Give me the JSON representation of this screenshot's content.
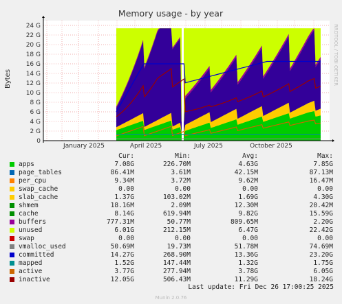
{
  "title": "Memory usage - by year",
  "side_label": "RRDTOOL / TOBI OETIKER",
  "chart_data": {
    "type": "area",
    "ylabel": "Bytes",
    "yticks": [
      "0",
      "2 G",
      "4 G",
      "6 G",
      "8 G",
      "10 G",
      "12 G",
      "14 G",
      "16 G",
      "18 G",
      "20 G",
      "22 G",
      "24 G"
    ],
    "ylim": [
      0,
      25
    ],
    "xticks": [
      "January 2025",
      "April 2025",
      "July 2025",
      "October 2025"
    ],
    "grid": true
  },
  "legend": {
    "headers": {
      "cur": "Cur:",
      "min": "Min:",
      "avg": "Avg:",
      "max": "Max:"
    },
    "rows": [
      {
        "name": "apps",
        "color": "#00cc00",
        "cur": "7.08G",
        "min": "226.70M",
        "avg": "4.63G",
        "max": "7.85G"
      },
      {
        "name": "page_tables",
        "color": "#0066b3",
        "cur": "86.41M",
        "min": "3.61M",
        "avg": "42.15M",
        "max": "87.13M"
      },
      {
        "name": "per_cpu",
        "color": "#ff8000",
        "cur": "9.34M",
        "min": "3.72M",
        "avg": "9.62M",
        "max": "16.47M"
      },
      {
        "name": "swap_cache",
        "color": "#ffcc00",
        "cur": "0.00",
        "min": "0.00",
        "avg": "0.00",
        "max": "0.00"
      },
      {
        "name": "slab_cache",
        "color": "#ffcc00",
        "cur": "1.37G",
        "min": "103.02M",
        "avg": "1.69G",
        "max": "4.30G"
      },
      {
        "name": "shmem",
        "color": "#008f00",
        "cur": "18.16M",
        "min": "2.09M",
        "avg": "12.30M",
        "max": "20.42M"
      },
      {
        "name": "cache",
        "color": "#008f00",
        "cur": "8.14G",
        "min": "619.94M",
        "avg": "9.82G",
        "max": "15.59G"
      },
      {
        "name": "buffers",
        "color": "#990099",
        "cur": "777.31M",
        "min": "50.77M",
        "avg": "809.65M",
        "max": "2.20G"
      },
      {
        "name": "unused",
        "color": "#ccff00",
        "cur": "6.01G",
        "min": "212.15M",
        "avg": "6.47G",
        "max": "22.42G"
      },
      {
        "name": "swap",
        "color": "#cc0000",
        "cur": "0.00",
        "min": "0.00",
        "avg": "0.00",
        "max": "0.00"
      },
      {
        "name": "vmalloc_used",
        "color": "#808080",
        "cur": "50.69M",
        "min": "19.73M",
        "avg": "51.78M",
        "max": "74.69M"
      },
      {
        "name": "committed",
        "color": "#0000cc",
        "cur": "14.27G",
        "min": "268.90M",
        "avg": "13.36G",
        "max": "23.20G"
      },
      {
        "name": "mapped",
        "color": "#008f8f",
        "cur": "1.52G",
        "min": "147.44M",
        "avg": "1.32G",
        "max": "1.75G"
      },
      {
        "name": "active",
        "color": "#cc6600",
        "cur": "3.77G",
        "min": "277.94M",
        "avg": "3.78G",
        "max": "6.05G"
      },
      {
        "name": "inactive",
        "color": "#990000",
        "cur": "12.05G",
        "min": "506.43M",
        "avg": "11.29G",
        "max": "18.24G"
      }
    ]
  },
  "last_update": "Last update: Fri Dec 26 17:00:25 2025",
  "footer": "Munin 2.0.76"
}
